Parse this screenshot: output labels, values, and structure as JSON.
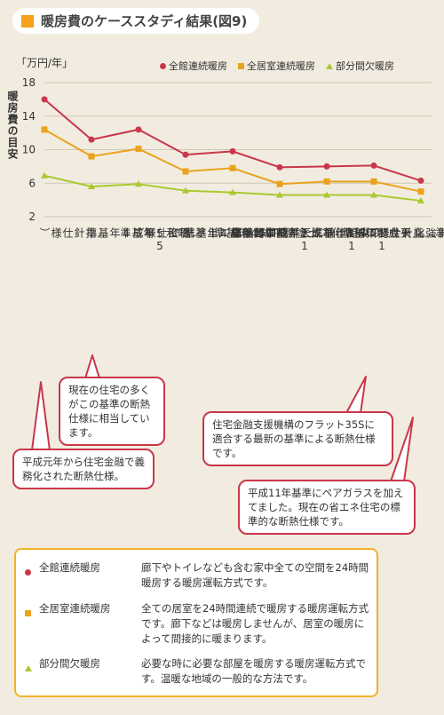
{
  "title": "暖房費のケーススタディ結果(図9)",
  "unit": "「万円/年」",
  "ylabel": "暖房費の目安",
  "legend": [
    {
      "name": "全館連続暖房",
      "symbol": "circle",
      "color": "#c9374a"
    },
    {
      "name": "全居室連続暖房",
      "symbol": "square",
      "color": "#e9a31d"
    },
    {
      "name": "部分間欠暖房",
      "symbol": "triangle",
      "color": "#aac930"
    }
  ],
  "chart_data": {
    "type": "line",
    "ylim": [
      2,
      18
    ],
    "yticks": [
      "2",
      "6",
      "10",
      "14",
      "18"
    ],
    "categories": [
      "昭和55年基準（指針仕様）",
      "平成4年基準",
      "平成4年基準（機密仕様）",
      "平成11年基準と平成4年基準の中間仕様（土塗壁）",
      "平成11年基準と平成4年基準の中間仕様（天井開口部強化）",
      "平成11年基準（土塗壁）",
      "平成11年基準（天井開口部強化）",
      "平成11年基準（指針仕様）",
      "平成11年基準＋開口部強化"
    ],
    "series": [
      {
        "name": "全館連続暖房",
        "color": "#c9374a",
        "values": [
          16.0,
          11.2,
          12.4,
          9.4,
          9.8,
          7.9,
          8.0,
          8.1,
          6.3
        ]
      },
      {
        "name": "全居室連続暖房",
        "color": "#e9a31d",
        "values": [
          12.4,
          9.2,
          10.1,
          7.4,
          7.8,
          5.9,
          6.2,
          6.2,
          5.0
        ]
      },
      {
        "name": "部分間欠暖房",
        "color": "#aac930",
        "values": [
          6.9,
          5.6,
          5.9,
          5.1,
          4.9,
          4.6,
          4.6,
          4.6,
          3.9
        ]
      }
    ]
  },
  "xlabels": [
    "昭\n和\n55\n年\n基\n準\n\n（\n指\n針\n仕\n様\n）",
    "平\n成\n4\n年\n基\n準",
    "平\n成\n4\n年\n基\n準\n\n（\n機\n密\n仕\n様\n）",
    "の\n中\n間\n仕\n様\n（\n土\n塗\n壁\n）",
    "平\n成\n11\n年\n基\n準\nと\n平\n成\n4\n年\n基\n準",
    "の\n中\n間\n仕\n様\n（\n天\n井\n開\n口\n部\n強\n化\n）",
    "平\n成\n11\n年\n基\n準\nと\n平\n成\n4\n年\n基\n準",
    "平\n成\n11\n年\n基\n準\n\n（\n土\n塗\n壁\n）",
    "平\n成\n11\n年\n基\n準\n\n（\n天\n井\n開\n口\n部\n強\n化\n）",
    "平\n成\n11\n年\n基\n準\n\n（\n指\n針\n仕\n様\n）",
    "平\n成\n11\n年\n基\n準\n\n＋\n\n開\n口\n部\n強\n化"
  ],
  "callouts": {
    "c1": "現在の住宅の多くがこの基準の断熱仕様に相当しています。",
    "c2": "平成元年から住宅金融で義務化された断熱仕様。",
    "c3": "住宅金融支援機構のフラット35Sに適合する最新の基準による断熱仕様です。",
    "c4": "平成11年基準にペアガラスを加えてました。現在の省エネ住宅の標準的な断熱仕様です。"
  },
  "descriptions": [
    {
      "name": "全館連続暖房",
      "symbol": "circle",
      "text": "廊下やトイレなども含む家中全ての空間を24時間暖房する暖房運転方式です。"
    },
    {
      "name": "全居室連続暖房",
      "symbol": "square",
      "text": "全ての居室を24時間連続で暖房する暖房運転方式です。廊下などは暖房しませんが、居室の暖房によって間接的に暖まります。"
    },
    {
      "name": "部分間欠暖房",
      "symbol": "triangle",
      "text": "必要な時に必要な部屋を暖房する暖房運転方式です。温暖な地域の一般的な方法です。"
    }
  ]
}
